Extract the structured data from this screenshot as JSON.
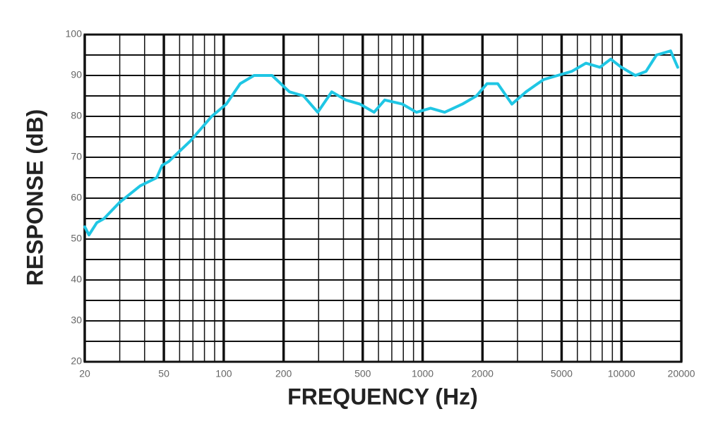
{
  "chart_data": {
    "type": "line",
    "xlabel": "FREQUENCY (Hz)",
    "ylabel": "RESPONSE (dB)",
    "xscale": "log",
    "color": "#1fc6e4",
    "xlim": [
      20,
      20000
    ],
    "ylim": [
      20,
      100
    ],
    "xticks": [
      20,
      50,
      100,
      200,
      500,
      1000,
      2000,
      5000,
      10000,
      20000
    ],
    "yticks": [
      20,
      30,
      40,
      50,
      60,
      70,
      80,
      90,
      100
    ],
    "xgrid": [
      30,
      40,
      60,
      70,
      80,
      90,
      300,
      400,
      600,
      700,
      800,
      900,
      3000,
      4000,
      6000,
      7000,
      8000,
      9000
    ],
    "ygrid": [
      25,
      35,
      45,
      55,
      65,
      75,
      85,
      95
    ],
    "x": [
      20,
      21,
      23,
      25,
      30,
      38,
      46,
      49,
      53,
      68,
      87,
      103,
      121,
      142,
      175,
      214,
      252,
      297,
      349,
      411,
      484,
      570,
      645,
      791,
      931,
      1096,
      1291,
      1585,
      1866,
      2109,
      2388,
      2812,
      3311,
      4058,
      4776,
      5624,
      6623,
      7799,
      8828,
      9980,
      11751,
      13289,
      15003,
      17664,
      19180
    ],
    "values": [
      53,
      51,
      54,
      55,
      59,
      63,
      65,
      68,
      69,
      74,
      80,
      83,
      88,
      90,
      90,
      86,
      85,
      81,
      86,
      84,
      83,
      81,
      84,
      83,
      81,
      82,
      81,
      83,
      85,
      88,
      88,
      83,
      86,
      89,
      90,
      91,
      93,
      92,
      94,
      92,
      90,
      91,
      95,
      96,
      92
    ]
  }
}
